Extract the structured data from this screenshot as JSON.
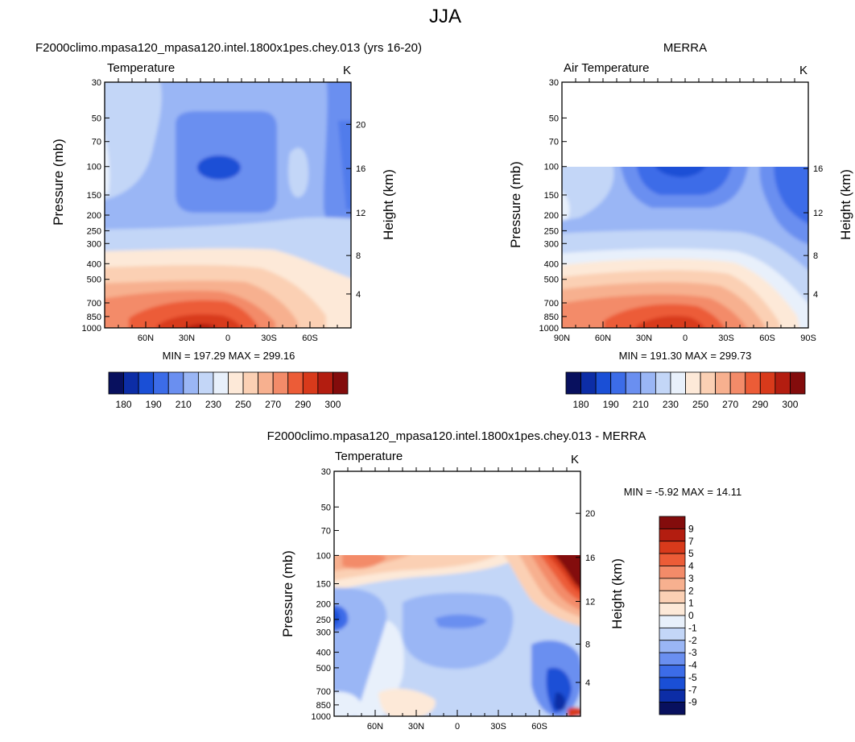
{
  "page": {
    "title": "JJA"
  },
  "colors": {
    "temperature_scale": [
      "#08105e",
      "#0c2da6",
      "#1a4fd6",
      "#3c6ce8",
      "#6a8ff0",
      "#9ab6f5",
      "#c3d6f7",
      "#e8f0fb",
      "#fde9d8",
      "#fbd0b4",
      "#f7b08f",
      "#f38b69",
      "#ec5c37",
      "#d83a1b",
      "#b31d10",
      "#830c0c"
    ],
    "difference_scale": [
      "#08105e",
      "#0c2da6",
      "#1a4fd6",
      "#3c6ce8",
      "#6a8ff0",
      "#9ab6f5",
      "#c3d6f7",
      "#e8f0fb",
      "#fde9d8",
      "#fbd0b4",
      "#f7b08f",
      "#f38b69",
      "#ec5c37",
      "#d83a1b",
      "#b31d10",
      "#830c0c"
    ]
  },
  "chart_data": [
    {
      "id": "model",
      "type": "contour",
      "title": "F2000climo.mpasa120_mpasa120.intel.1800x1pes.chey.013 (yrs 16-20)",
      "left_string": "Temperature",
      "right_string": "K",
      "xlabel": "",
      "ylabel": "Pressure (mb)",
      "ylabel_right": "Height (km)",
      "xlim": [
        90,
        -90
      ],
      "x_ticks": [
        {
          "value": 60,
          "label": "60N"
        },
        {
          "value": 30,
          "label": "30N"
        },
        {
          "value": 0,
          "label": "0"
        },
        {
          "value": -30,
          "label": "30S"
        },
        {
          "value": -60,
          "label": "60S"
        }
      ],
      "pressure_ticks": [
        30,
        50,
        70,
        100,
        150,
        200,
        250,
        300,
        400,
        500,
        700,
        850,
        1000
      ],
      "ylim": [
        30,
        1000
      ],
      "height_ticks": [
        20,
        16,
        12,
        8,
        4
      ],
      "data_top_pressure": 30,
      "stats": "MIN = 197.29  MAX = 299.16",
      "min": 197.29,
      "max": 299.16,
      "colorbar": {
        "orientation": "horizontal",
        "labels": [
          "180",
          "190",
          "210",
          "230",
          "250",
          "270",
          "290",
          "300"
        ]
      }
    },
    {
      "id": "obs",
      "type": "contour",
      "title": "MERRA",
      "left_string": "Air Temperature",
      "right_string": "K",
      "xlabel": "",
      "ylabel": "Pressure (mb)",
      "ylabel_right": "Height (km)",
      "xlim": [
        90,
        -90
      ],
      "x_ticks": [
        {
          "value": 90,
          "label": "90N"
        },
        {
          "value": 60,
          "label": "60N"
        },
        {
          "value": 30,
          "label": "30N"
        },
        {
          "value": 0,
          "label": "0"
        },
        {
          "value": -30,
          "label": "30S"
        },
        {
          "value": -60,
          "label": "60S"
        },
        {
          "value": -90,
          "label": "90S"
        }
      ],
      "pressure_ticks": [
        30,
        50,
        70,
        100,
        150,
        200,
        250,
        300,
        400,
        500,
        700,
        850,
        1000
      ],
      "ylim": [
        30,
        1000
      ],
      "height_ticks": [
        16,
        12,
        8,
        4
      ],
      "data_top_pressure": 100,
      "stats": "MIN = 191.30  MAX = 299.73",
      "min": 191.3,
      "max": 299.73,
      "colorbar": {
        "orientation": "horizontal",
        "labels": [
          "180",
          "190",
          "210",
          "230",
          "250",
          "270",
          "290",
          "300"
        ]
      }
    },
    {
      "id": "diff",
      "type": "contour",
      "title": "F2000climo.mpasa120_mpasa120.intel.1800x1pes.chey.013 - MERRA",
      "left_string": "Temperature",
      "right_string": "K",
      "xlabel": "",
      "ylabel": "Pressure (mb)",
      "ylabel_right": "Height (km)",
      "xlim": [
        90,
        -90
      ],
      "x_ticks": [
        {
          "value": 60,
          "label": "60N"
        },
        {
          "value": 30,
          "label": "30N"
        },
        {
          "value": 0,
          "label": "0"
        },
        {
          "value": -30,
          "label": "30S"
        },
        {
          "value": -60,
          "label": "60S"
        }
      ],
      "pressure_ticks": [
        30,
        50,
        70,
        100,
        150,
        200,
        250,
        300,
        400,
        500,
        700,
        850,
        1000
      ],
      "ylim": [
        30,
        1000
      ],
      "height_ticks": [
        20,
        16,
        12,
        8,
        4
      ],
      "data_top_pressure": 100,
      "stats": "MIN =  -5.92  MAX =  14.11",
      "min": -5.92,
      "max": 14.11,
      "colorbar": {
        "orientation": "vertical",
        "labels": [
          "9",
          "7",
          "5",
          "4",
          "3",
          "2",
          "1",
          "0",
          "-1",
          "-2",
          "-3",
          "-4",
          "-5",
          "-7",
          "-9"
        ]
      }
    }
  ]
}
